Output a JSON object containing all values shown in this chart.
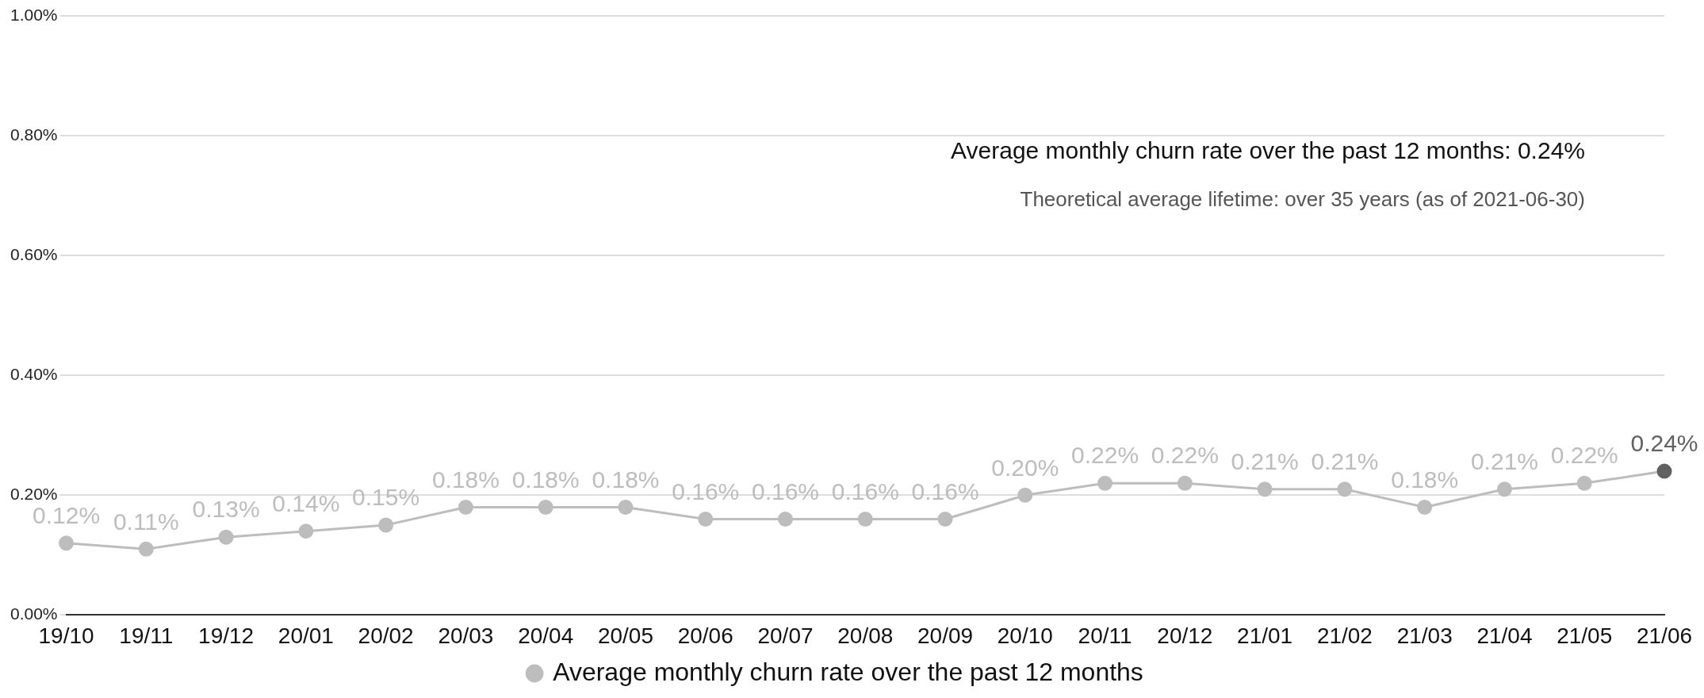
{
  "chart_data": {
    "type": "line",
    "categories": [
      "19/10",
      "19/11",
      "19/12",
      "20/01",
      "20/02",
      "20/03",
      "20/04",
      "20/05",
      "20/06",
      "20/07",
      "20/08",
      "20/09",
      "20/10",
      "20/11",
      "20/12",
      "21/01",
      "21/02",
      "21/03",
      "21/04",
      "21/05",
      "21/06"
    ],
    "series": [
      {
        "name": "Average monthly churn rate over the past 12 months",
        "color": "#bdbdbd",
        "colors": [
          "#bdbdbd",
          "#bdbdbd",
          "#bdbdbd",
          "#bdbdbd",
          "#bdbdbd",
          "#bdbdbd",
          "#bdbdbd",
          "#bdbdbd",
          "#bdbdbd",
          "#bdbdbd",
          "#bdbdbd",
          "#bdbdbd",
          "#bdbdbd",
          "#bdbdbd",
          "#bdbdbd",
          "#bdbdbd",
          "#bdbdbd",
          "#bdbdbd",
          "#bdbdbd",
          "#bdbdbd",
          "#616161"
        ],
        "values": [
          0.12,
          0.11,
          0.13,
          0.14,
          0.15,
          0.18,
          0.18,
          0.18,
          0.16,
          0.16,
          0.16,
          0.16,
          0.2,
          0.22,
          0.22,
          0.21,
          0.21,
          0.18,
          0.21,
          0.22,
          0.24
        ],
        "value_labels": [
          "0.12%",
          "0.11%",
          "0.13%",
          "0.14%",
          "0.15%",
          "0.18%",
          "0.18%",
          "0.18%",
          "0.16%",
          "0.16%",
          "0.16%",
          "0.16%",
          "0.20%",
          "0.22%",
          "0.22%",
          "0.21%",
          "0.21%",
          "0.18%",
          "0.21%",
          "0.22%",
          "0.24%"
        ]
      }
    ],
    "ylim": [
      0,
      1
    ],
    "yticks": [
      {
        "value": 0,
        "label": "0.00%"
      },
      {
        "value": 0.2,
        "label": "0.20%"
      },
      {
        "value": 0.4,
        "label": "0.40%"
      },
      {
        "value": 0.6,
        "label": "0.60%"
      },
      {
        "value": 0.8,
        "label": "0.80%"
      },
      {
        "value": 1,
        "label": "1.00%"
      }
    ],
    "grid": "y",
    "legend": "bottom",
    "marker": "circle",
    "line_style": "solid",
    "annotations": [
      "Average monthly churn rate over the past 12 months: 0.24%",
      "Theoretical average lifetime: over 35 years (as of 2021-06-30)"
    ]
  }
}
